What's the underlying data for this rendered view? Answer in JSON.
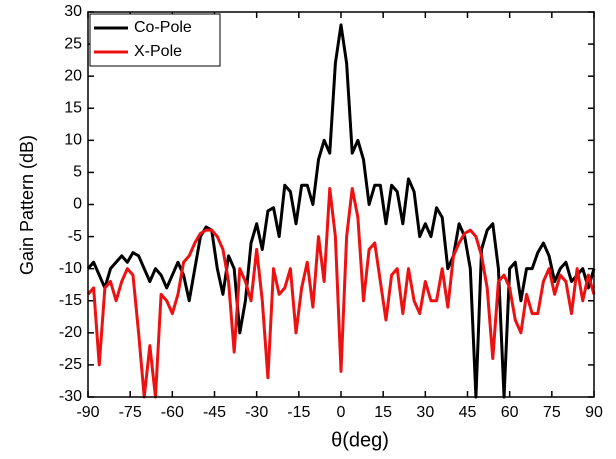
{
  "chart_data": {
    "type": "line",
    "xlabel": "θ(deg)",
    "ylabel": "Gain Pattern (dB)",
    "x": [
      -90,
      -88,
      -86,
      -84,
      -82,
      -80,
      -78,
      -76,
      -74,
      -72,
      -70,
      -68,
      -66,
      -64,
      -62,
      -60,
      -58,
      -56,
      -54,
      -52,
      -50,
      -48,
      -46,
      -44,
      -42,
      -40,
      -38,
      -36,
      -34,
      -32,
      -30,
      -28,
      -26,
      -24,
      -22,
      -20,
      -18,
      -16,
      -14,
      -12,
      -10,
      -8,
      -6,
      -4,
      -2,
      0,
      2,
      4,
      6,
      8,
      10,
      12,
      14,
      16,
      18,
      20,
      22,
      24,
      26,
      28,
      30,
      32,
      34,
      36,
      38,
      40,
      42,
      44,
      46,
      48,
      50,
      52,
      54,
      56,
      58,
      60,
      62,
      64,
      66,
      68,
      70,
      72,
      74,
      76,
      78,
      80,
      82,
      84,
      86,
      88,
      90
    ],
    "series": [
      {
        "name": "Co-Pole",
        "color": "#000000",
        "values": [
          -10,
          -9,
          -11,
          -13,
          -10,
          -9,
          -8,
          -9,
          -7.5,
          -8,
          -10,
          -12,
          -10,
          -11,
          -13,
          -11,
          -9,
          -11,
          -15,
          -10,
          -5,
          -3.5,
          -4,
          -10,
          -14,
          -8,
          -10,
          -20,
          -15,
          -6,
          -3,
          -7,
          -1,
          -0.5,
          -5,
          3,
          2,
          -3,
          3,
          3,
          0,
          7,
          10,
          8,
          22,
          28,
          22,
          8,
          10,
          7,
          0,
          3,
          3,
          -3,
          3,
          2,
          -3,
          4,
          2,
          -5,
          -3,
          -5,
          -0.5,
          -2,
          -10,
          -8,
          -3,
          -5,
          -10,
          -30,
          -7,
          -4,
          -3,
          -10,
          -30,
          -10,
          -9,
          -15,
          -10,
          -10,
          -7.5,
          -6,
          -8,
          -12,
          -10,
          -9,
          -12,
          -11,
          -10,
          -13,
          -10
        ]
      },
      {
        "name": "X-Pole",
        "color": "#ee1111",
        "values": [
          -14,
          -13,
          -25,
          -13,
          -12,
          -15,
          -12,
          -10,
          -11,
          -20,
          -30,
          -22,
          -30,
          -14,
          -15,
          -17,
          -14,
          -9,
          -8,
          -6,
          -4.5,
          -4,
          -4,
          -5,
          -7,
          -12,
          -23,
          -10,
          -12,
          -15,
          -7,
          -15,
          -27,
          -10,
          -14,
          -13,
          -10,
          -20,
          -13,
          -9,
          -16,
          -5,
          -12,
          2.5,
          -5,
          -26,
          -5,
          2.5,
          -2,
          -15,
          -7,
          -6,
          -12,
          -18,
          -11,
          -10,
          -17,
          -10,
          -15,
          -17,
          -12,
          -15,
          -15,
          -10,
          -16,
          -8,
          -6,
          -4.5,
          -4,
          -5,
          -8,
          -13,
          -24,
          -12,
          -11,
          -13,
          -18,
          -20,
          -14,
          -17,
          -17,
          -12,
          -10,
          -14,
          -11,
          -12,
          -17,
          -10,
          -15,
          -11,
          -14
        ]
      }
    ],
    "xlim": [
      -90,
      90
    ],
    "xticks": [
      -90,
      -75,
      -60,
      -45,
      -30,
      -15,
      0,
      15,
      30,
      45,
      60,
      75,
      90
    ],
    "ylim": [
      -30,
      30
    ],
    "yticks": [
      -30,
      -25,
      -20,
      -15,
      -10,
      -5,
      0,
      5,
      10,
      15,
      20,
      25,
      30
    ],
    "legend": "upper left"
  }
}
